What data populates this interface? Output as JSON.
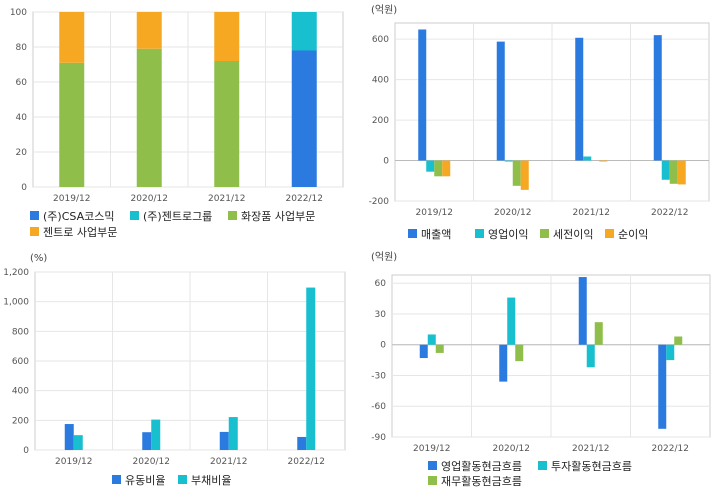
{
  "colors": {
    "blue": "#2b7ae0",
    "teal": "#17bfcf",
    "green": "#8fbf4a",
    "orange": "#f7a823",
    "grid": "#e6e6e6",
    "axis": "#cccccc"
  },
  "chart_data": [
    {
      "type": "bar",
      "stacked": true,
      "title": "",
      "unit": "",
      "categories": [
        "2019/12",
        "2020/12",
        "2021/12",
        "2022/12"
      ],
      "yticks": [
        "0",
        "20",
        "40",
        "60",
        "80",
        "100"
      ],
      "ylim": [
        0,
        100
      ],
      "series": [
        {
          "name": "(주)CSA코스믹",
          "color": "#2b7ae0",
          "values": [
            0,
            0,
            0,
            78
          ]
        },
        {
          "name": "(주)젠트로그룹",
          "color": "#17bfcf",
          "values": [
            0,
            0,
            0,
            22
          ]
        },
        {
          "name": "화장품 사업부문",
          "color": "#8fbf4a",
          "values": [
            71,
            79,
            72,
            0
          ]
        },
        {
          "name": "젠트로 사업부문",
          "color": "#f7a823",
          "values": [
            29,
            21,
            28,
            0
          ]
        }
      ]
    },
    {
      "type": "bar",
      "stacked": false,
      "title": "",
      "unit": "(억원)",
      "categories": [
        "2019/12",
        "2020/12",
        "2021/12",
        "2022/12"
      ],
      "yticks": [
        "-200",
        "0",
        "200",
        "400",
        "600"
      ],
      "ylim": [
        -200,
        680
      ],
      "series": [
        {
          "name": "매출액",
          "color": "#2b7ae0",
          "values": [
            648,
            588,
            607,
            620
          ]
        },
        {
          "name": "영업이익",
          "color": "#17bfcf",
          "values": [
            -55,
            -5,
            20,
            -95
          ]
        },
        {
          "name": "세전이익",
          "color": "#8fbf4a",
          "values": [
            -78,
            -125,
            0,
            -115
          ]
        },
        {
          "name": "순이익",
          "color": "#f7a823",
          "values": [
            -78,
            -145,
            -3,
            -118
          ]
        }
      ]
    },
    {
      "type": "bar",
      "stacked": false,
      "title": "",
      "unit": "(%)",
      "categories": [
        "2019/12",
        "2020/12",
        "2021/12",
        "2022/12"
      ],
      "yticks": [
        "0",
        "200",
        "400",
        "600",
        "800",
        "1,000",
        "1,200"
      ],
      "ylim": [
        0,
        1200
      ],
      "series": [
        {
          "name": "유동비율",
          "color": "#2b7ae0",
          "values": [
            175,
            120,
            122,
            88
          ]
        },
        {
          "name": "부채비율",
          "color": "#17bfcf",
          "values": [
            100,
            205,
            222,
            1095
          ]
        }
      ]
    },
    {
      "type": "bar",
      "stacked": false,
      "title": "",
      "unit": "(억원)",
      "categories": [
        "2019/12",
        "2020/12",
        "2021/12",
        "2022/12"
      ],
      "yticks": [
        "-90",
        "-60",
        "-30",
        "0",
        "30",
        "60"
      ],
      "ylim": [
        -90,
        68
      ],
      "series": [
        {
          "name": "영업활동현금흐름",
          "color": "#2b7ae0",
          "values": [
            -13,
            -36,
            66,
            -82
          ]
        },
        {
          "name": "투자활동현금흐름",
          "color": "#17bfcf",
          "values": [
            10,
            46,
            -22,
            -15
          ]
        },
        {
          "name": "재무활동현금흐름",
          "color": "#8fbf4a",
          "values": [
            -8,
            -16,
            22,
            8
          ]
        }
      ]
    }
  ]
}
